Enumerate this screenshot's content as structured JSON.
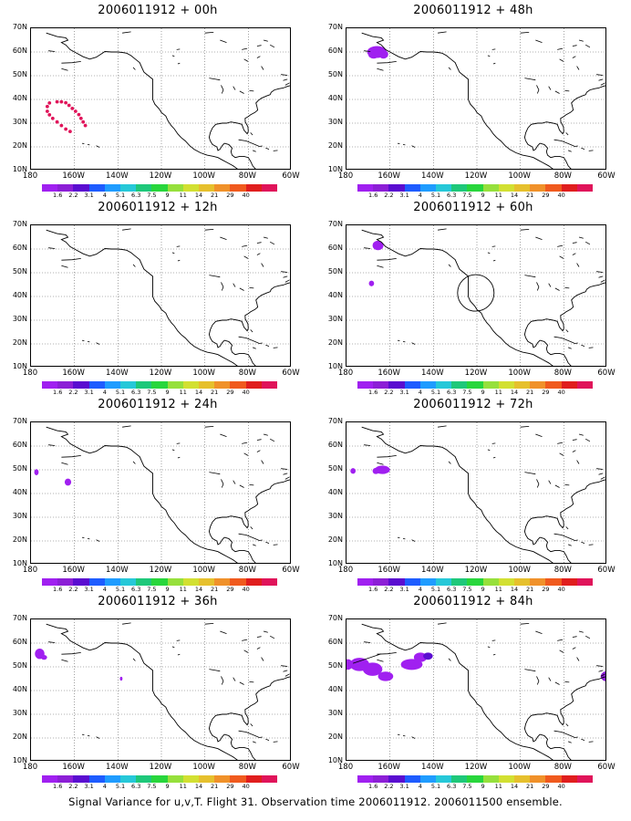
{
  "caption": "Signal Variance for u,v,T. Flight 31. Observation time 2006011912. 2006011500 ensemble.",
  "axis": {
    "lat_labels": [
      "70N",
      "60N",
      "50N",
      "40N",
      "30N",
      "20N",
      "10N"
    ],
    "lon_labels": [
      "180",
      "160W",
      "140W",
      "120W",
      "100W",
      "80W",
      "60W"
    ]
  },
  "colorbar": {
    "colors": [
      "#a020f0",
      "#8c1fd6",
      "#5a0dd0",
      "#1e5cff",
      "#1f9cff",
      "#26c8d8",
      "#1ec87a",
      "#28d63c",
      "#96e03c",
      "#d2e032",
      "#e6c02d",
      "#f0912a",
      "#f05a1e",
      "#e01e1e",
      "#e0145a"
    ],
    "labels": [
      "1.6",
      "2.2",
      "3.1",
      "4",
      "5.1",
      "6.3",
      "7.5",
      "9",
      "11",
      "14",
      "21",
      "29",
      "40"
    ]
  },
  "panels": [
    {
      "title": "2006011912 + 00h"
    },
    {
      "title": "2006011912 + 48h"
    },
    {
      "title": "2006011912 + 12h"
    },
    {
      "title": "2006011912 + 60h"
    },
    {
      "title": "2006011912 + 24h"
    },
    {
      "title": "2006011912 + 72h"
    },
    {
      "title": "2006011912 + 36h"
    },
    {
      "title": "2006011912 + 84h"
    }
  ]
}
